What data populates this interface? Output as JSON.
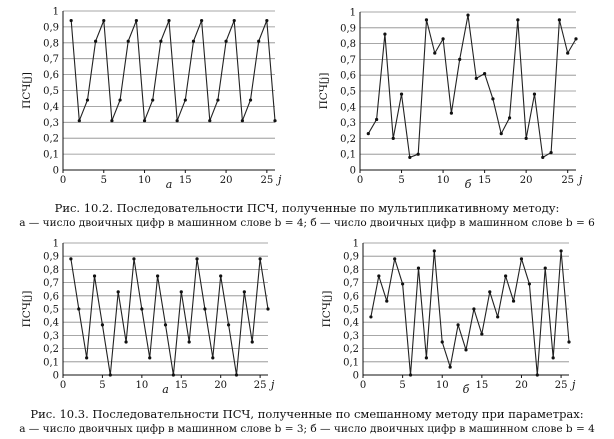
{
  "chart_data": [
    {
      "type": "line",
      "panel_label": "а",
      "ylabel": "ПСЧ[j]",
      "xlabel": "j",
      "xlim": [
        0,
        26
      ],
      "ylim": [
        0,
        1
      ],
      "x_ticks": [
        "0",
        "5",
        "10",
        "15",
        "20",
        "25"
      ],
      "y_ticks": [
        "0",
        "0,1",
        "0,2",
        "0,3",
        "0,4",
        "0,5",
        "0,6",
        "0,7",
        "0,8",
        "0,9",
        "1"
      ],
      "grid": "horizontal",
      "series": [
        {
          "x": [
            1,
            2,
            3,
            4,
            5,
            6,
            7,
            8,
            9,
            10,
            11,
            12,
            13,
            14,
            15,
            16,
            17,
            18,
            19,
            20,
            21,
            22,
            23,
            24,
            25,
            26
          ],
          "y": [
            0.94,
            0.31,
            0.44,
            0.81,
            0.94,
            0.31,
            0.44,
            0.81,
            0.94,
            0.31,
            0.44,
            0.81,
            0.94,
            0.31,
            0.44,
            0.81,
            0.94,
            0.31,
            0.44,
            0.81,
            0.94,
            0.31,
            0.44,
            0.81,
            0.94,
            0.31
          ]
        }
      ]
    },
    {
      "type": "line",
      "panel_label": "б",
      "ylabel": "ПСЧ[j]",
      "xlabel": "j",
      "xlim": [
        0,
        26
      ],
      "ylim": [
        0,
        1
      ],
      "x_ticks": [
        "0",
        "5",
        "10",
        "15",
        "20",
        "25"
      ],
      "y_ticks": [
        "0",
        "0,1",
        "0,2",
        "0,3",
        "0,4",
        "0,5",
        "0,6",
        "0,7",
        "0,8",
        "0,9",
        "1"
      ],
      "grid": "horizontal",
      "series": [
        {
          "x": [
            1,
            2,
            3,
            4,
            5,
            6,
            7,
            8,
            9,
            10,
            11,
            12,
            13,
            14,
            15,
            16,
            17,
            18,
            19,
            20,
            21,
            22,
            23,
            24,
            25,
            26
          ],
          "y": [
            0.23,
            0.32,
            0.86,
            0.2,
            0.48,
            0.08,
            0.1,
            0.95,
            0.74,
            0.83,
            0.36,
            0.7,
            0.98,
            0.58,
            0.61,
            0.45,
            0.23,
            0.33,
            0.95,
            0.2,
            0.48,
            0.08,
            0.11,
            0.95,
            0.74,
            0.83
          ]
        }
      ]
    },
    {
      "type": "line",
      "panel_label": "а",
      "ylabel": "ПСЧ[j]",
      "xlabel": "j",
      "xlim": [
        0,
        26
      ],
      "ylim": [
        0,
        1
      ],
      "x_ticks": [
        "0",
        "5",
        "10",
        "15",
        "20",
        "25"
      ],
      "y_ticks": [
        "0",
        "0,1",
        "0,2",
        "0,3",
        "0,4",
        "0,5",
        "0,6",
        "0,7",
        "0,8",
        "0,9",
        "1"
      ],
      "grid": "horizontal",
      "series": [
        {
          "x": [
            1,
            2,
            3,
            4,
            5,
            6,
            7,
            8,
            9,
            10,
            11,
            12,
            13,
            14,
            15,
            16,
            17,
            18,
            19,
            20,
            21,
            22,
            23,
            24,
            25,
            26
          ],
          "y": [
            0.88,
            0.5,
            0.13,
            0.75,
            0.38,
            0.0,
            0.63,
            0.25,
            0.88,
            0.5,
            0.13,
            0.75,
            0.38,
            0.0,
            0.63,
            0.25,
            0.88,
            0.5,
            0.13,
            0.75,
            0.38,
            0.0,
            0.63,
            0.25,
            0.88,
            0.5
          ]
        }
      ]
    },
    {
      "type": "line",
      "panel_label": "б",
      "ylabel": "ПСЧ[j]",
      "xlabel": "j",
      "xlim": [
        0,
        26
      ],
      "ylim": [
        0,
        1
      ],
      "x_ticks": [
        "0",
        "5",
        "10",
        "15",
        "20",
        "25"
      ],
      "y_ticks": [
        "0",
        "0,1",
        "0,2",
        "0,3",
        "0,4",
        "0,5",
        "0,6",
        "0,7",
        "0,8",
        "0,9",
        "1"
      ],
      "grid": "horizontal",
      "series": [
        {
          "x": [
            1,
            2,
            3,
            4,
            5,
            6,
            7,
            8,
            9,
            10,
            11,
            12,
            13,
            14,
            15,
            16,
            17,
            18,
            19,
            20,
            21,
            22,
            23,
            24,
            25,
            26
          ],
          "y": [
            0.44,
            0.75,
            0.56,
            0.88,
            0.69,
            0.0,
            0.81,
            0.13,
            0.94,
            0.25,
            0.06,
            0.38,
            0.19,
            0.5,
            0.31,
            0.63,
            0.44,
            0.75,
            0.56,
            0.88,
            0.69,
            0.0,
            0.81,
            0.13,
            0.94,
            0.25
          ]
        }
      ]
    }
  ],
  "captions": {
    "fig1_title": "Рис. 10.2. Последовательности ПСЧ, полученные по мультипликативному методу:",
    "fig1_sub": "а — число двоичных цифр в машинном слове b = 4; б — число двоичных цифр в машинном слове b = 6",
    "fig2_title": "Рис. 10.3. Последовательности ПСЧ, полученные по смешанному методу при параметрах:",
    "fig2_sub": "а — число двоичных цифр в машинном слове b = 3; б — число двоичных цифр в машинном слове b = 4"
  }
}
